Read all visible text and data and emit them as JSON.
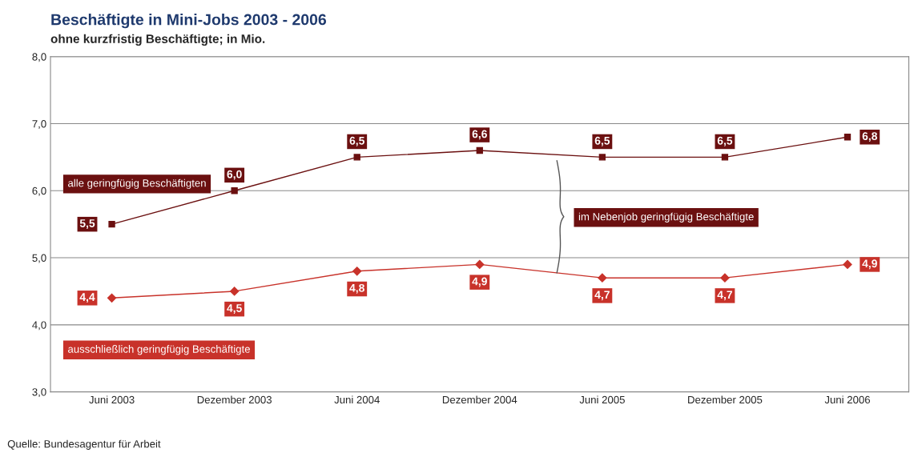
{
  "chart_data": {
    "type": "line",
    "title": "Beschäftigte in Mini-Jobs 2003 - 2006",
    "subtitle": "ohne kurzfristig Beschäftigte; in Mio.",
    "categories": [
      "Juni 2003",
      "Dezember 2003",
      "Juni 2004",
      "Dezember 2004",
      "Juni 2005",
      "Dezember 2005",
      "Juni 2006"
    ],
    "series": [
      {
        "name": "alle geringfügig Beschäftigten",
        "color": "#6b1010",
        "marker": "square",
        "values": [
          5.5,
          6.0,
          6.5,
          6.6,
          6.5,
          6.5,
          6.8
        ],
        "value_labels": [
          "5,5",
          "6,0",
          "6,5",
          "6,6",
          "6,5",
          "6,5",
          "6,8"
        ]
      },
      {
        "name": "ausschließlich geringfügig Beschäftigte",
        "color": "#c8322a",
        "marker": "diamond",
        "values": [
          4.4,
          4.5,
          4.8,
          4.9,
          4.7,
          4.7,
          4.9
        ],
        "value_labels": [
          "4,4",
          "4,5",
          "4,8",
          "4,9",
          "4,7",
          "4,7",
          "4,9"
        ]
      }
    ],
    "ylim": [
      3,
      8
    ],
    "yticks": [
      {
        "value": 3,
        "label": "3,0"
      },
      {
        "value": 4,
        "label": "4,0"
      },
      {
        "value": 5,
        "label": "5,0"
      },
      {
        "value": 6,
        "label": "6,0"
      },
      {
        "value": 7,
        "label": "7,0"
      },
      {
        "value": 8,
        "label": "8,0"
      }
    ],
    "grid": "y",
    "annotations": [
      "im Nebenjob geringfügig Beschäftigte",
      "Quelle: Bundesagentur für Arbeit"
    ]
  }
}
